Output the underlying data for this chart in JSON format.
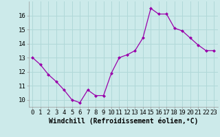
{
  "x": [
    0,
    1,
    2,
    3,
    4,
    5,
    6,
    7,
    8,
    9,
    10,
    11,
    12,
    13,
    14,
    15,
    16,
    17,
    18,
    19,
    20,
    21,
    22,
    23
  ],
  "y": [
    13.0,
    12.5,
    11.8,
    11.3,
    10.7,
    10.0,
    9.8,
    10.7,
    10.3,
    10.3,
    11.9,
    13.0,
    13.2,
    13.5,
    14.4,
    16.5,
    16.1,
    16.1,
    15.1,
    14.9,
    14.4,
    13.9,
    13.5,
    13.5
  ],
  "line_color": "#9900aa",
  "marker": "D",
  "marker_size": 2.0,
  "bg_color": "#cceaea",
  "grid_color": "#b0d8d8",
  "xlabel": "Windchill (Refroidissement éolien,°C)",
  "xlabel_fontsize": 7.0,
  "tick_fontsize": 6.5,
  "ylim": [
    9.5,
    17.0
  ],
  "yticks": [
    10,
    11,
    12,
    13,
    14,
    15,
    16
  ],
  "xticks": [
    0,
    1,
    2,
    3,
    4,
    5,
    6,
    7,
    8,
    9,
    10,
    11,
    12,
    13,
    14,
    15,
    16,
    17,
    18,
    19,
    20,
    21,
    22,
    23
  ]
}
